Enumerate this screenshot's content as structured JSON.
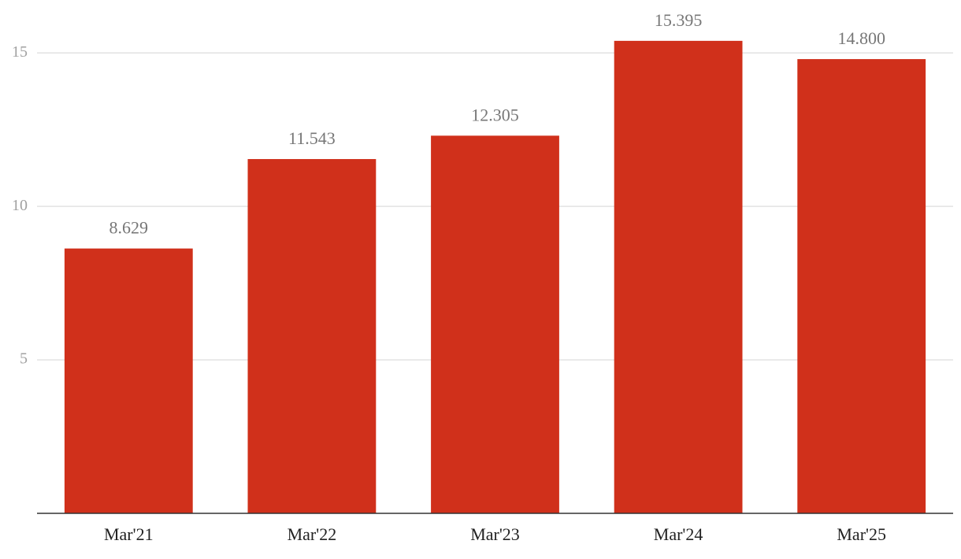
{
  "chart_data": {
    "type": "bar",
    "categories": [
      "Mar'21",
      "Mar'22",
      "Mar'23",
      "Mar'24",
      "Mar'25"
    ],
    "values": [
      8.629,
      11.543,
      12.305,
      15.395,
      14.8
    ],
    "value_labels": [
      "8.629",
      "11.543",
      "12.305",
      "15.395",
      "14.800"
    ],
    "color": "#d0301b",
    "ylim": [
      0,
      16.7
    ],
    "yticks": [
      5,
      10,
      15
    ],
    "grid": true
  }
}
